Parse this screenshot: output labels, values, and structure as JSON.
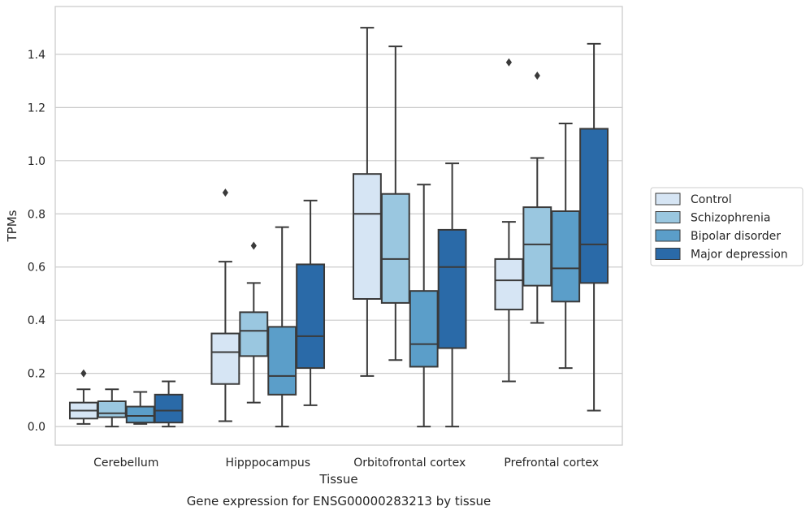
{
  "caption": "Gene expression for ENSG00000283213 by tissue",
  "chart_data": {
    "type": "box",
    "xlabel": "Tissue",
    "ylabel": "TPMs",
    "ylim": [
      -0.07,
      1.58
    ],
    "yticks": [
      "0.0",
      "0.2",
      "0.4",
      "0.6",
      "0.8",
      "1.0",
      "1.2",
      "1.4"
    ],
    "grid": true,
    "legend_position": "right",
    "categories": [
      "Cerebellum",
      "Hipppocampus",
      "Orbitofrontal cortex",
      "Prefrontal cortex"
    ],
    "series": [
      {
        "name": "Control",
        "color": "#d6e5f4",
        "boxes": [
          {
            "whislo": 0.01,
            "q1": 0.03,
            "med": 0.06,
            "q3": 0.09,
            "whishi": 0.14,
            "fliers": [
              0.2
            ]
          },
          {
            "whislo": 0.02,
            "q1": 0.16,
            "med": 0.28,
            "q3": 0.35,
            "whishi": 0.62,
            "fliers": [
              0.88
            ]
          },
          {
            "whislo": 0.19,
            "q1": 0.48,
            "med": 0.8,
            "q3": 0.95,
            "whishi": 1.5,
            "fliers": []
          },
          {
            "whislo": 0.17,
            "q1": 0.44,
            "med": 0.55,
            "q3": 0.63,
            "whishi": 0.77,
            "fliers": [
              1.37
            ]
          }
        ]
      },
      {
        "name": "Schizophrenia",
        "color": "#9ac7e0",
        "boxes": [
          {
            "whislo": 0.0,
            "q1": 0.035,
            "med": 0.05,
            "q3": 0.095,
            "whishi": 0.14,
            "fliers": []
          },
          {
            "whislo": 0.09,
            "q1": 0.265,
            "med": 0.36,
            "q3": 0.43,
            "whishi": 0.54,
            "fliers": [
              0.68
            ]
          },
          {
            "whislo": 0.25,
            "q1": 0.465,
            "med": 0.63,
            "q3": 0.875,
            "whishi": 1.43,
            "fliers": []
          },
          {
            "whislo": 0.39,
            "q1": 0.53,
            "med": 0.685,
            "q3": 0.825,
            "whishi": 1.01,
            "fliers": [
              1.32
            ]
          }
        ]
      },
      {
        "name": "Bipolar disorder",
        "color": "#5b9ec9",
        "boxes": [
          {
            "whislo": 0.01,
            "q1": 0.015,
            "med": 0.04,
            "q3": 0.075,
            "whishi": 0.13,
            "fliers": []
          },
          {
            "whislo": 0.0,
            "q1": 0.12,
            "med": 0.19,
            "q3": 0.375,
            "whishi": 0.75,
            "fliers": []
          },
          {
            "whislo": 0.0,
            "q1": 0.225,
            "med": 0.31,
            "q3": 0.51,
            "whishi": 0.91,
            "fliers": []
          },
          {
            "whislo": 0.22,
            "q1": 0.47,
            "med": 0.595,
            "q3": 0.81,
            "whishi": 1.14,
            "fliers": []
          }
        ]
      },
      {
        "name": "Major depression",
        "color": "#2a6aa8",
        "boxes": [
          {
            "whislo": 0.0,
            "q1": 0.015,
            "med": 0.06,
            "q3": 0.12,
            "whishi": 0.17,
            "fliers": []
          },
          {
            "whislo": 0.08,
            "q1": 0.22,
            "med": 0.34,
            "q3": 0.61,
            "whishi": 0.85,
            "fliers": []
          },
          {
            "whislo": 0.0,
            "q1": 0.295,
            "med": 0.6,
            "q3": 0.74,
            "whishi": 0.99,
            "fliers": []
          },
          {
            "whislo": 0.06,
            "q1": 0.54,
            "med": 0.685,
            "q3": 1.12,
            "whishi": 1.44,
            "fliers": []
          }
        ]
      }
    ]
  }
}
